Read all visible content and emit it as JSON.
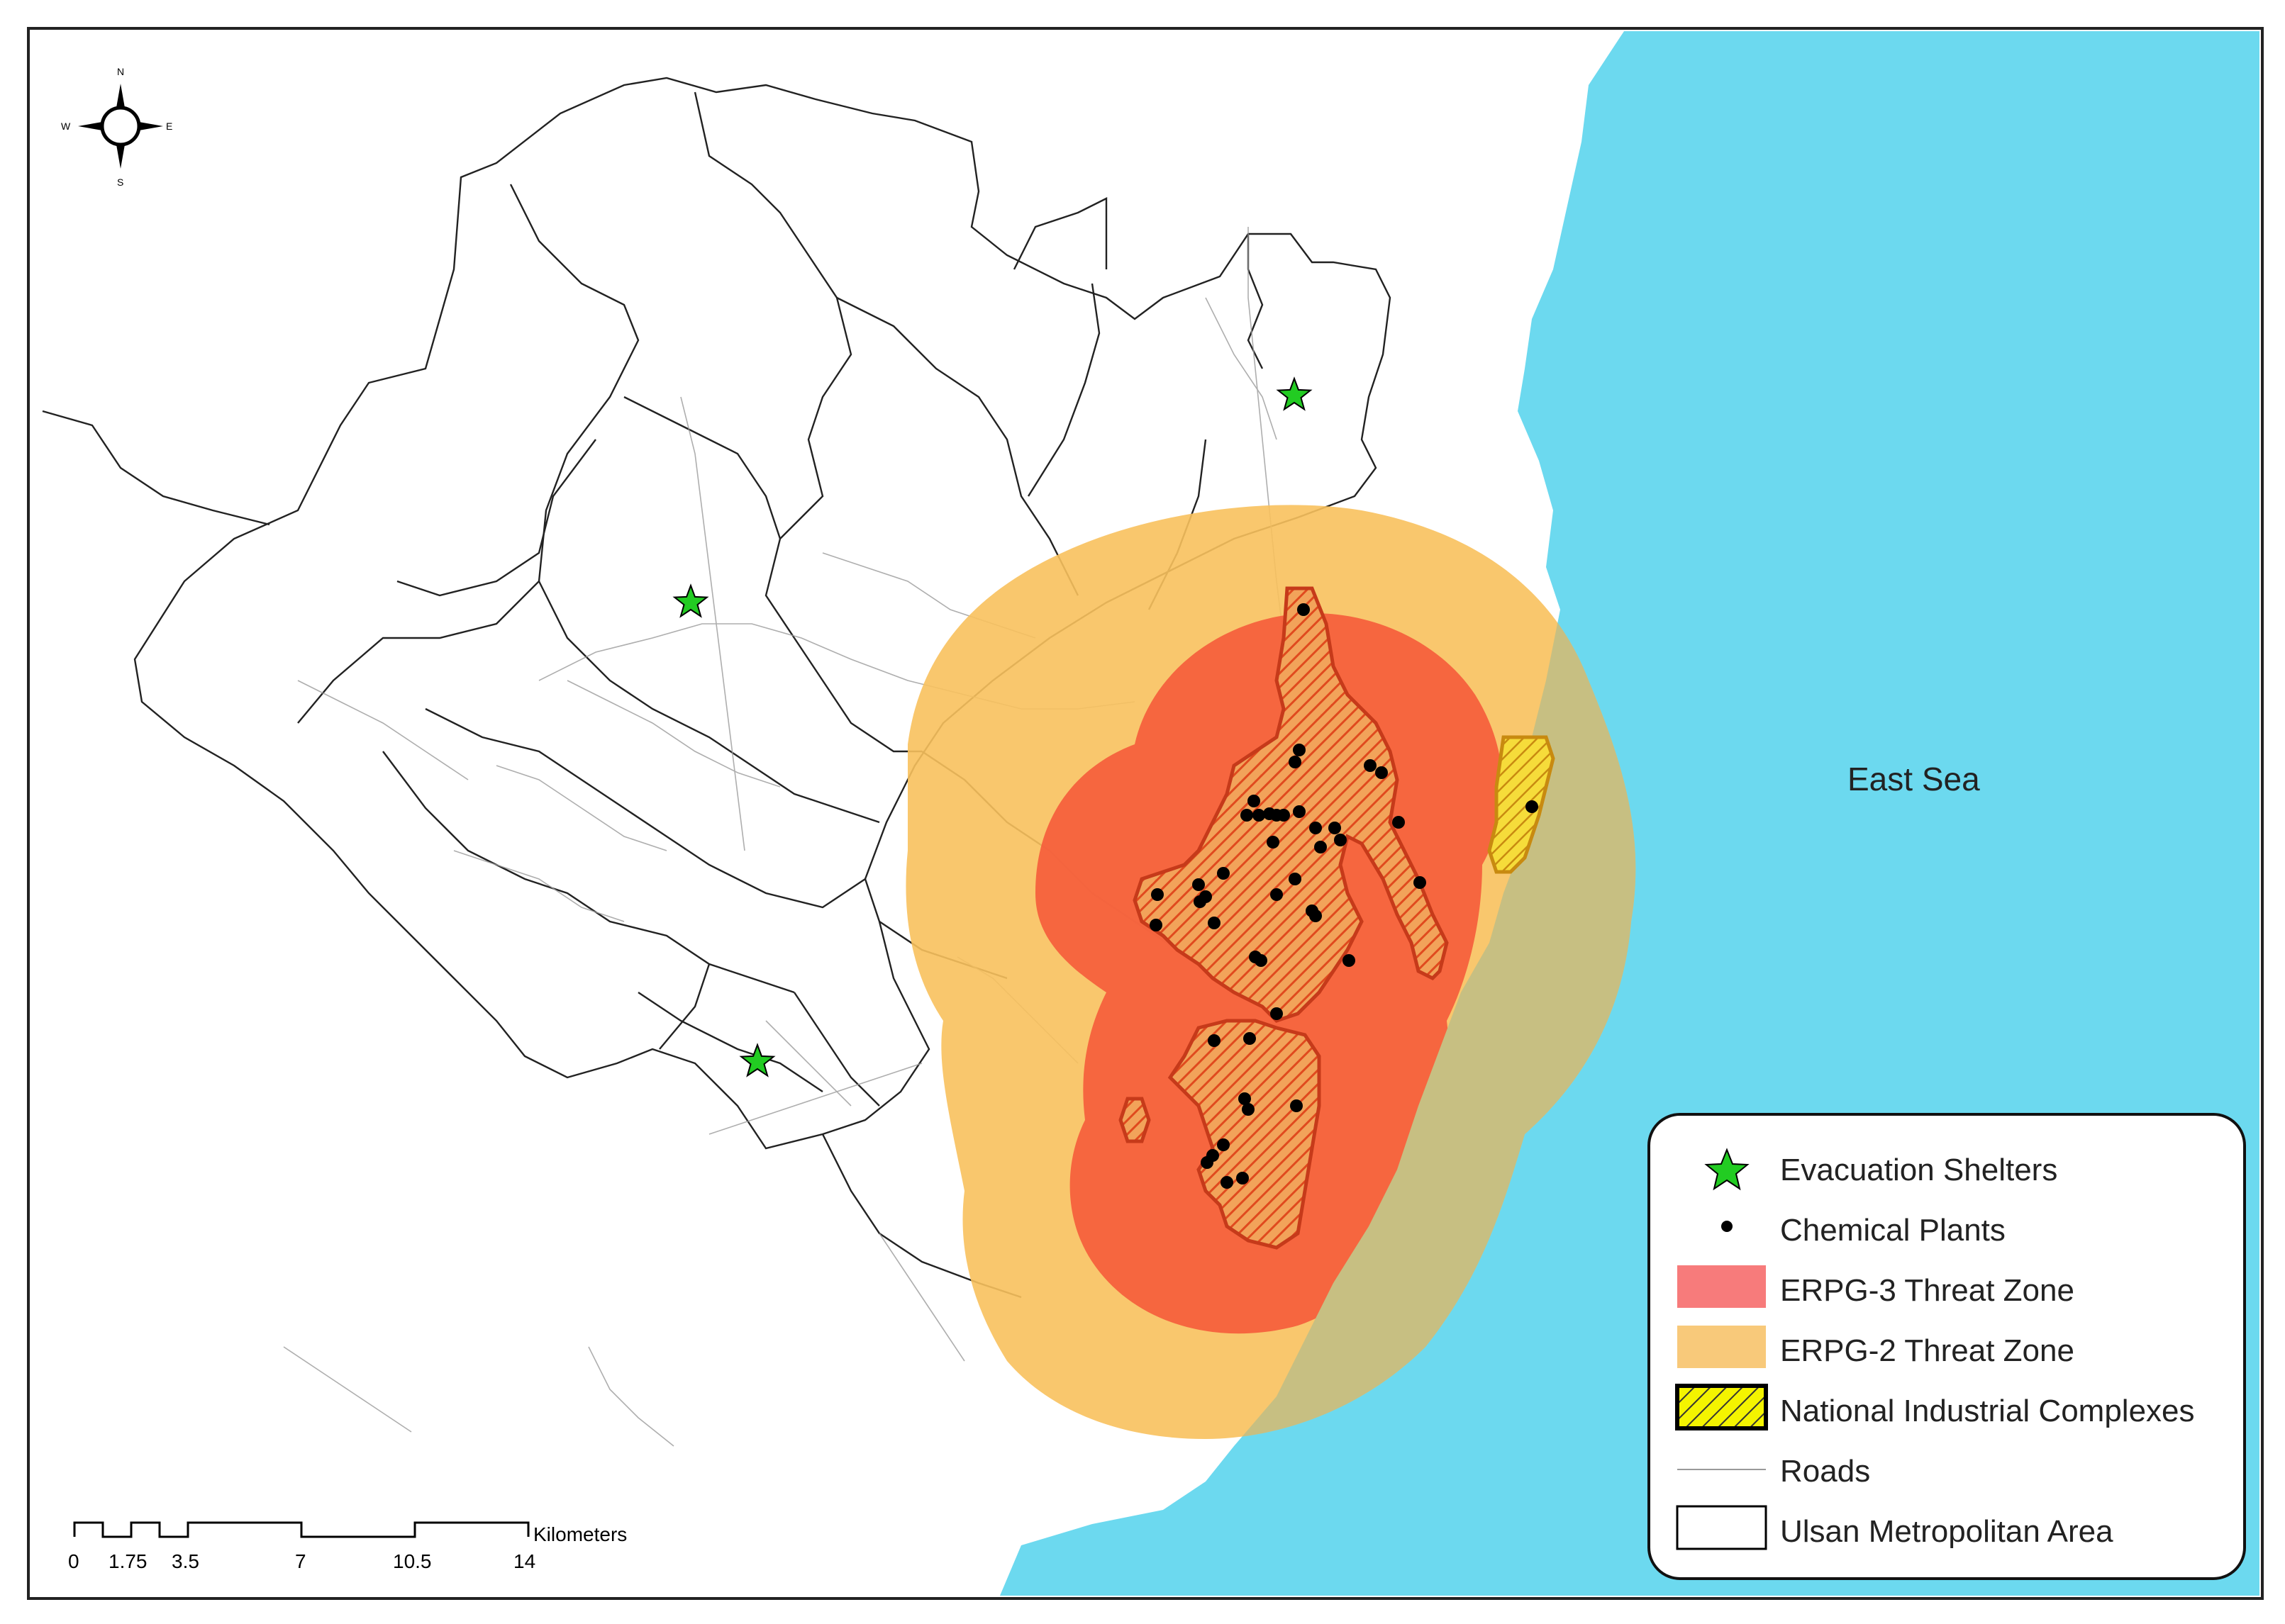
{
  "map": {
    "sea_label": "East Sea",
    "colors": {
      "sea": "#6cd9ef",
      "erpg3": "#f55d3c",
      "erpg2": "#f8c15d",
      "erpg2_over_sea": "#c7bf82",
      "complex_hatch": "#e05a2a",
      "complex_border": "#c63a1a",
      "shelter": "#22cc22",
      "plant": "#000000"
    },
    "compass": {
      "n": "N",
      "s": "S",
      "e": "E",
      "w": "W"
    },
    "scale": {
      "ticks": [
        "0",
        "1.75",
        "3.5",
        "7",
        "10.5",
        "14"
      ],
      "unit": "Kilometers"
    },
    "legend": {
      "items": [
        {
          "label": "Evacuation Shelters",
          "symbol": "star-icon"
        },
        {
          "label": "Chemical Plants",
          "symbol": "dot-icon"
        },
        {
          "label": "ERPG-3 Threat Zone",
          "symbol": "red-fill"
        },
        {
          "label": "ERPG-2 Threat Zone",
          "symbol": "orange-fill"
        },
        {
          "label": "National Industrial Complexes",
          "symbol": "hatch-fill"
        },
        {
          "label": "Roads",
          "symbol": "line"
        },
        {
          "label": "Ulsan Metropolitan Area",
          "symbol": "outline-box"
        }
      ]
    }
  }
}
